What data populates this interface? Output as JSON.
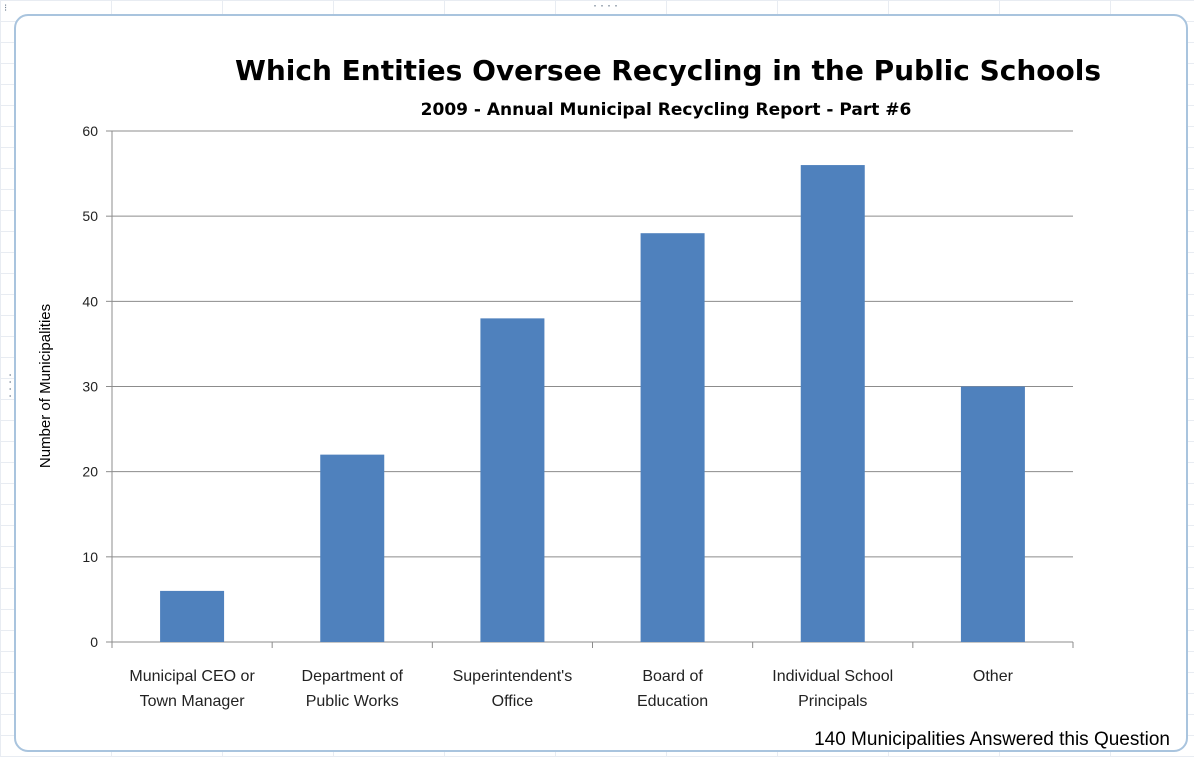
{
  "chart_data": {
    "type": "bar",
    "title": "Which Entities Oversee Recycling in the Public Schools",
    "subtitle": "2009 - Annual Municipal Recycling Report - Part #6",
    "xlabel": "",
    "ylabel": "Number of Municipalities",
    "ylim": [
      0,
      60
    ],
    "yticks": [
      "0",
      "10",
      "20",
      "30",
      "40",
      "50",
      "60"
    ],
    "grid": "horizontal",
    "legend": "none",
    "bar_color": "#4f81bd",
    "categories": [
      [
        "Municipal CEO or",
        "Town Manager"
      ],
      [
        "Department of",
        "Public Works"
      ],
      [
        "Superintendent's",
        "Office"
      ],
      [
        "Board of",
        "Education"
      ],
      [
        "Individual School",
        "Principals"
      ],
      [
        "Other"
      ]
    ],
    "values": [
      6,
      22,
      38,
      48,
      56,
      30
    ],
    "annotation": "140 Municipalities Answered this Question"
  }
}
